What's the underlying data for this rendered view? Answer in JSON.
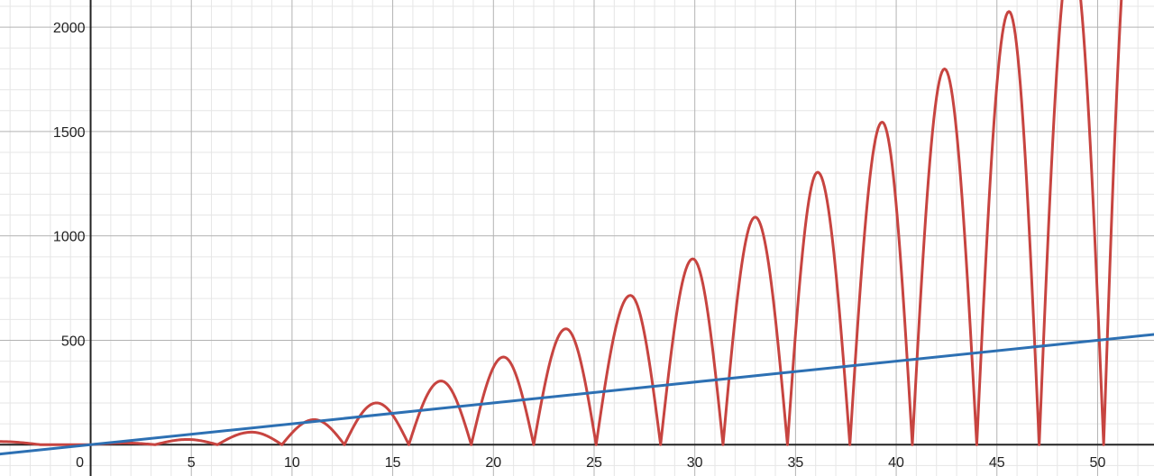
{
  "chart_data": {
    "type": "line",
    "title": "",
    "xlabel": "",
    "ylabel": "",
    "xlim": [
      -4.5,
      52.8
    ],
    "ylim": [
      -150,
      2130
    ],
    "x_ticks": [
      0,
      5,
      10,
      15,
      20,
      25,
      30,
      35,
      40,
      45,
      50
    ],
    "x_tick_labels": [
      "0",
      "5",
      "10",
      "15",
      "20",
      "25",
      "30",
      "35",
      "40",
      "45",
      "50"
    ],
    "y_ticks": [
      500,
      1000,
      1500,
      2000
    ],
    "y_tick_labels": [
      "500",
      "1000",
      "1500",
      "2000"
    ],
    "grid": true,
    "legend": "none",
    "series": [
      {
        "color": "#c74440",
        "x": [
          -4.5,
          -2.5,
          0,
          1.7,
          3.2,
          4.8,
          6.3,
          8.0,
          9.5,
          11.1,
          12.6,
          14.2,
          15.8,
          17.4,
          18.9,
          20.5,
          22.0,
          23.6,
          25.1,
          26.8,
          28.3,
          29.9,
          31.4,
          33.0,
          34.6,
          36.1,
          37.7,
          39.3,
          40.8,
          42.4,
          44.0,
          45.6,
          47.1,
          48.7,
          50.3,
          51.8
        ],
        "y": [
          15,
          0,
          0,
          8,
          0,
          25,
          0,
          60,
          0,
          120,
          0,
          200,
          0,
          305,
          0,
          420,
          0,
          555,
          0,
          715,
          0,
          890,
          0,
          1090,
          0,
          1305,
          0,
          1545,
          0,
          1800,
          0,
          2075,
          0,
          2370,
          0,
          2680
        ]
      },
      {
        "color": "#2d70b3",
        "x": [
          -4.5,
          52.8
        ],
        "y": [
          -45,
          528
        ]
      }
    ]
  }
}
